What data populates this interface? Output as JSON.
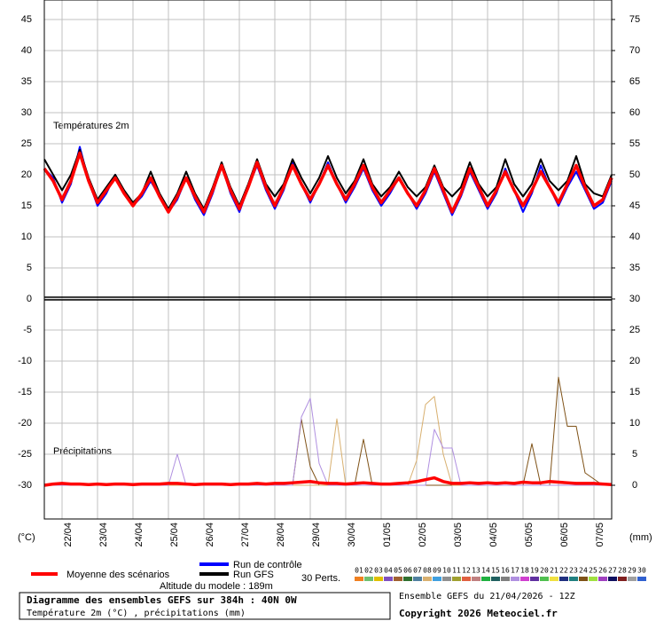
{
  "chart_data": {
    "type": "line",
    "panel_labels": [
      "Températures 2m",
      "Précipitations"
    ],
    "y_unit": "(°C)",
    "y2_unit": "(mm)",
    "x": [
      0,
      6,
      12,
      18,
      24,
      30,
      36,
      42,
      48,
      54,
      60,
      66,
      72,
      78,
      84,
      90,
      96,
      102,
      108,
      114,
      120,
      126,
      132,
      138,
      144,
      150,
      156,
      162,
      168,
      174,
      180,
      186,
      192,
      198,
      204,
      210,
      216,
      222,
      228,
      234,
      240,
      246,
      252,
      258,
      264,
      270,
      276,
      282,
      288,
      294,
      300,
      306,
      312,
      318,
      324,
      330,
      336,
      342,
      348,
      354,
      360,
      366,
      372,
      378,
      384
    ],
    "xlim": [
      0,
      384
    ],
    "xticks": [
      {
        "value": 12,
        "label": "22/04"
      },
      {
        "value": 36,
        "label": "23/04"
      },
      {
        "value": 60,
        "label": "24/04"
      },
      {
        "value": 84,
        "label": "25/04"
      },
      {
        "value": 108,
        "label": "26/04"
      },
      {
        "value": 132,
        "label": "27/04"
      },
      {
        "value": 156,
        "label": "28/04"
      },
      {
        "value": 180,
        "label": "29/04"
      },
      {
        "value": 204,
        "label": "30/04"
      },
      {
        "value": 228,
        "label": "01/05"
      },
      {
        "value": 252,
        "label": "02/05"
      },
      {
        "value": 276,
        "label": "03/05"
      },
      {
        "value": 300,
        "label": "04/05"
      },
      {
        "value": 324,
        "label": "05/05"
      },
      {
        "value": 348,
        "label": "06/05"
      },
      {
        "value": 372,
        "label": "07/05"
      }
    ],
    "ylim": [
      -35.43,
      48.14
    ],
    "yticks": [
      45,
      40,
      35,
      30,
      25,
      20,
      15,
      10,
      5,
      0,
      -5,
      -10,
      -15,
      -20,
      -25,
      -30
    ],
    "y2lim": [
      -5.43,
      78.14
    ],
    "y2ticks": [
      75,
      70,
      65,
      60,
      55,
      50,
      45,
      40,
      35,
      30,
      25,
      20,
      15,
      10,
      5,
      0
    ],
    "grid": true,
    "series": [
      {
        "name": "Moyenne des scénarios",
        "color": "#ff0000",
        "values": [
          21,
          19,
          16,
          19,
          23.5,
          19,
          15.5,
          17.5,
          19.5,
          17,
          15,
          17,
          19.5,
          16.5,
          14,
          16.5,
          19.5,
          16.5,
          14,
          17.5,
          21.5,
          17.5,
          14.5,
          18,
          22,
          18,
          15,
          18,
          21.5,
          18.5,
          16,
          18.5,
          21.5,
          18.5,
          16,
          18.5,
          21.5,
          18,
          15.5,
          17.5,
          19.5,
          17,
          15,
          17.5,
          21,
          17.5,
          14,
          17,
          21,
          18,
          15,
          17.5,
          20.5,
          17.5,
          15,
          17.5,
          20.5,
          18,
          15.5,
          18.5,
          21.5,
          18,
          15,
          16,
          19.5
        ]
      },
      {
        "name": "Run de contrôle",
        "color": "#0000ff",
        "values": [
          21,
          19.5,
          15.5,
          18.5,
          24.5,
          19,
          15,
          17,
          20,
          17,
          15,
          16.5,
          19,
          16.5,
          14,
          16,
          19.5,
          16,
          13.5,
          17,
          21.5,
          17,
          14,
          18,
          21.5,
          17.5,
          14.5,
          17.5,
          22,
          18.5,
          15.5,
          18.5,
          22,
          18.5,
          15.5,
          18,
          21,
          17.5,
          15,
          17,
          19.5,
          17,
          14.5,
          17,
          20.5,
          17,
          13.5,
          16.5,
          20.5,
          17.5,
          14.5,
          17,
          21,
          17.5,
          14,
          17,
          21.5,
          18,
          15,
          18,
          20.5,
          17.5,
          14.5,
          15.5,
          19
        ]
      },
      {
        "name": "Run GFS",
        "color": "#000000",
        "values": [
          22.5,
          20,
          17.5,
          20,
          24,
          19.5,
          16,
          18,
          20,
          17.5,
          15.5,
          17,
          20.5,
          17,
          14.5,
          17,
          20.5,
          17,
          14.5,
          18,
          22,
          18,
          15,
          18.5,
          22.5,
          18.5,
          16.5,
          18.5,
          22.5,
          19.5,
          17,
          19.5,
          23,
          19.5,
          17,
          19,
          22.5,
          18.5,
          16.5,
          18,
          20.5,
          18,
          16.5,
          18,
          21.5,
          18,
          16.5,
          18,
          22,
          18.5,
          16.5,
          18,
          22.5,
          18.5,
          16.5,
          18.5,
          22.5,
          19,
          17.5,
          19,
          23,
          18.5,
          17,
          16.5,
          20
        ]
      },
      {
        "name": "24",
        "color": "#7f5217",
        "axis": "y2",
        "values": [
          0,
          0,
          0,
          0,
          0,
          0,
          0,
          0,
          0,
          0,
          0,
          0,
          0,
          0,
          0,
          0,
          0,
          0,
          0,
          0,
          0,
          0,
          0,
          0,
          0,
          0,
          0,
          0,
          0,
          10.6,
          3,
          0,
          0,
          0,
          0,
          0,
          7.4,
          0,
          0,
          0,
          0,
          0,
          0,
          0,
          0,
          0,
          0,
          0,
          0,
          0,
          0,
          0,
          0,
          0,
          0,
          6.7,
          0,
          0,
          17.4,
          9.5,
          9.5,
          2,
          1,
          0,
          0
        ]
      },
      {
        "name": "08",
        "color": "#d8b070",
        "axis": "y2",
        "values": [
          0,
          0,
          0,
          0,
          0,
          0,
          0,
          0,
          0,
          0,
          0,
          0,
          0,
          0,
          0,
          0,
          0,
          0,
          0,
          0,
          0,
          0,
          0,
          0,
          0,
          0,
          0,
          0,
          0,
          0,
          0,
          0,
          0,
          10.7,
          0,
          0,
          0,
          0,
          0,
          0,
          0,
          0,
          4,
          13,
          14.3,
          5,
          0,
          0,
          0,
          0,
          0,
          0,
          0,
          0,
          0,
          0,
          0,
          0,
          0,
          0,
          0,
          0,
          0,
          0,
          0
        ]
      },
      {
        "name": "17",
        "color": "#b090e0",
        "axis": "y2",
        "values": [
          0,
          0,
          0,
          0,
          0,
          0,
          0,
          0,
          0,
          0,
          0,
          0,
          0,
          0,
          0,
          5,
          0,
          0,
          0,
          0,
          0,
          0,
          0,
          0,
          0,
          0,
          0,
          0,
          0,
          11,
          14,
          3.5,
          0,
          0,
          0,
          0,
          0,
          0,
          0,
          0,
          0,
          0,
          0,
          0,
          9,
          6,
          6,
          0,
          0,
          0,
          0,
          0,
          0,
          0,
          0,
          0,
          0,
          0,
          0,
          0,
          0,
          0,
          0,
          0,
          0
        ]
      },
      {
        "name": "Moyenne des scénarios",
        "color": "#ff0000",
        "axis": "y2",
        "values": [
          0,
          0.2,
          0.3,
          0.2,
          0.2,
          0.1,
          0.2,
          0.1,
          0.2,
          0.2,
          0.1,
          0.2,
          0.2,
          0.2,
          0.3,
          0.3,
          0.2,
          0.1,
          0.2,
          0.2,
          0.2,
          0.1,
          0.2,
          0.2,
          0.3,
          0.2,
          0.3,
          0.3,
          0.4,
          0.5,
          0.6,
          0.4,
          0.3,
          0.3,
          0.2,
          0.3,
          0.4,
          0.3,
          0.2,
          0.2,
          0.3,
          0.4,
          0.6,
          0.9,
          1.2,
          0.6,
          0.3,
          0.3,
          0.4,
          0.3,
          0.4,
          0.3,
          0.4,
          0.3,
          0.5,
          0.4,
          0.4,
          0.6,
          0.5,
          0.4,
          0.3,
          0.3,
          0.3,
          0.2,
          0.1
        ]
      }
    ]
  },
  "legend": {
    "perturbations_title": "30 Perts.",
    "perturbations": [
      {
        "name": "01",
        "color": "#f08020"
      },
      {
        "name": "02",
        "color": "#70c070"
      },
      {
        "name": "03",
        "color": "#e0c000"
      },
      {
        "name": "04",
        "color": "#8050c0"
      },
      {
        "name": "05",
        "color": "#a06030"
      },
      {
        "name": "06",
        "color": "#307030"
      },
      {
        "name": "07",
        "color": "#5080a0"
      },
      {
        "name": "08",
        "color": "#d8b070"
      },
      {
        "name": "09",
        "color": "#40a0e0"
      },
      {
        "name": "10",
        "color": "#909090"
      },
      {
        "name": "11",
        "color": "#a0a030"
      },
      {
        "name": "12",
        "color": "#e06040"
      },
      {
        "name": "13",
        "color": "#c08080"
      },
      {
        "name": "14",
        "color": "#20b040"
      },
      {
        "name": "15",
        "color": "#206060"
      },
      {
        "name": "16",
        "color": "#808080"
      },
      {
        "name": "17",
        "color": "#b090e0"
      },
      {
        "name": "18",
        "color": "#d040d0"
      },
      {
        "name": "19",
        "color": "#6030a0"
      },
      {
        "name": "20",
        "color": "#50c050"
      },
      {
        "name": "21",
        "color": "#f0e040"
      },
      {
        "name": "22",
        "color": "#203080"
      },
      {
        "name": "23",
        "color": "#208080"
      },
      {
        "name": "24",
        "color": "#7f5217"
      },
      {
        "name": "25",
        "color": "#a0e040"
      },
      {
        "name": "26",
        "color": "#a040c0"
      },
      {
        "name": "27",
        "color": "#101060"
      },
      {
        "name": "28",
        "color": "#802020"
      },
      {
        "name": "29",
        "color": "#a0a0a0"
      },
      {
        "name": "30",
        "color": "#3060d0"
      }
    ],
    "altitude": "Altitude du modele : 189m"
  },
  "footer": {
    "title": "Diagramme des ensembles GEFS sur 384h : 40N 0W",
    "subtitle": "Température 2m (°C) , précipitations (mm)",
    "run": "Ensemble GEFS du 21/04/2026 - 12Z",
    "copyright": "Copyright 2026 Meteociel.fr"
  }
}
